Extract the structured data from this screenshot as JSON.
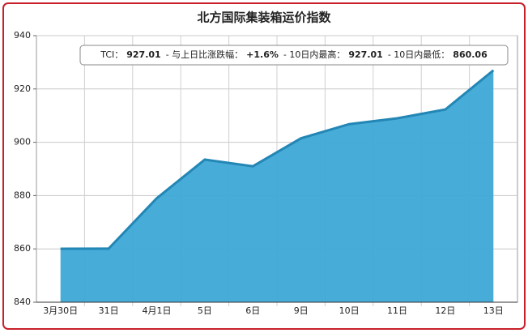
{
  "chart_data": {
    "type": "area",
    "title": "北方国际集装箱运价指数",
    "categories": [
      "3月30日",
      "31日",
      "4月1日",
      "5日",
      "6日",
      "9日",
      "10日",
      "11日",
      "12日",
      "13日"
    ],
    "values": [
      860.06,
      860.1,
      879,
      893.5,
      891,
      901.5,
      906.8,
      909,
      912.3,
      927.01
    ],
    "color": "#3ea8d6",
    "line_color": "#2386b5",
    "ylim": [
      840,
      940
    ],
    "yticks": [
      840,
      860,
      880,
      900,
      920,
      940
    ],
    "grid": true,
    "annotation": [
      {
        "label": "TCI：",
        "value": "927.01"
      },
      {
        "label": "- 与上日比涨跌幅：",
        "value": "+1.6%"
      },
      {
        "label": "- 10日内最高：",
        "value": "927.01"
      },
      {
        "label": "- 10日内最低：",
        "value": "860.06"
      }
    ]
  }
}
